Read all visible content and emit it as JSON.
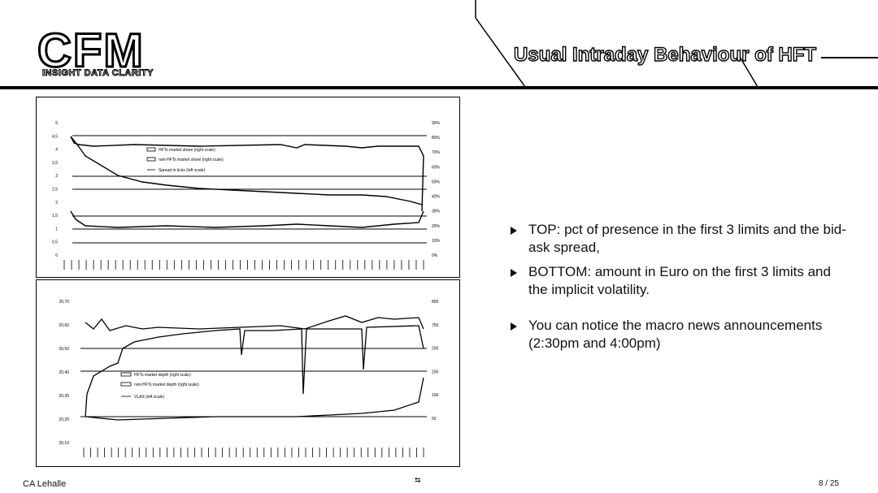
{
  "logo": {
    "text": "CFM",
    "tagline": "INSIGHT DATA CLARITY"
  },
  "slide": {
    "title": "Usual Intraday Behaviour of HFT"
  },
  "top_chart": {
    "y_left_ticks": [
      "5",
      "4,5",
      "4",
      "3,5",
      "3",
      "2,5",
      "2",
      "1,5",
      "1",
      "0,5",
      "0"
    ],
    "y_right_ticks": [
      "90%",
      "80%",
      "70%",
      "60%",
      "50%",
      "40%",
      "30%",
      "20%",
      "10%",
      "0%"
    ],
    "legend": [
      "HFTs market share (right scale)",
      "non-HFTs market share (right scale)",
      "Spread in ticks (left scale)"
    ]
  },
  "bottom_chart": {
    "y_left_ticks": [
      "20,70",
      "20,60",
      "20,50",
      "20,40",
      "20,30",
      "20,20",
      "20,10"
    ],
    "y_right_ticks": [
      "800",
      "750",
      "200",
      "150",
      "100",
      "50"
    ],
    "legend": [
      "HFTs market depth (right scale)",
      "non-HFTs market depth (right scale)",
      "VLAX (left scale)"
    ]
  },
  "bullets": [
    {
      "text": "TOP: pct of presence in the first 3 limits and the bid-ask spread,"
    },
    {
      "text": "BOTTOM: amount in Euro on the first 3 limits and the implicit volatility."
    },
    {
      "text": "You can notice the macro news announcements (2:30pm and 4:00pm)"
    }
  ],
  "footer": {
    "author": "CA Lehalle",
    "page": "8 / 25"
  }
}
